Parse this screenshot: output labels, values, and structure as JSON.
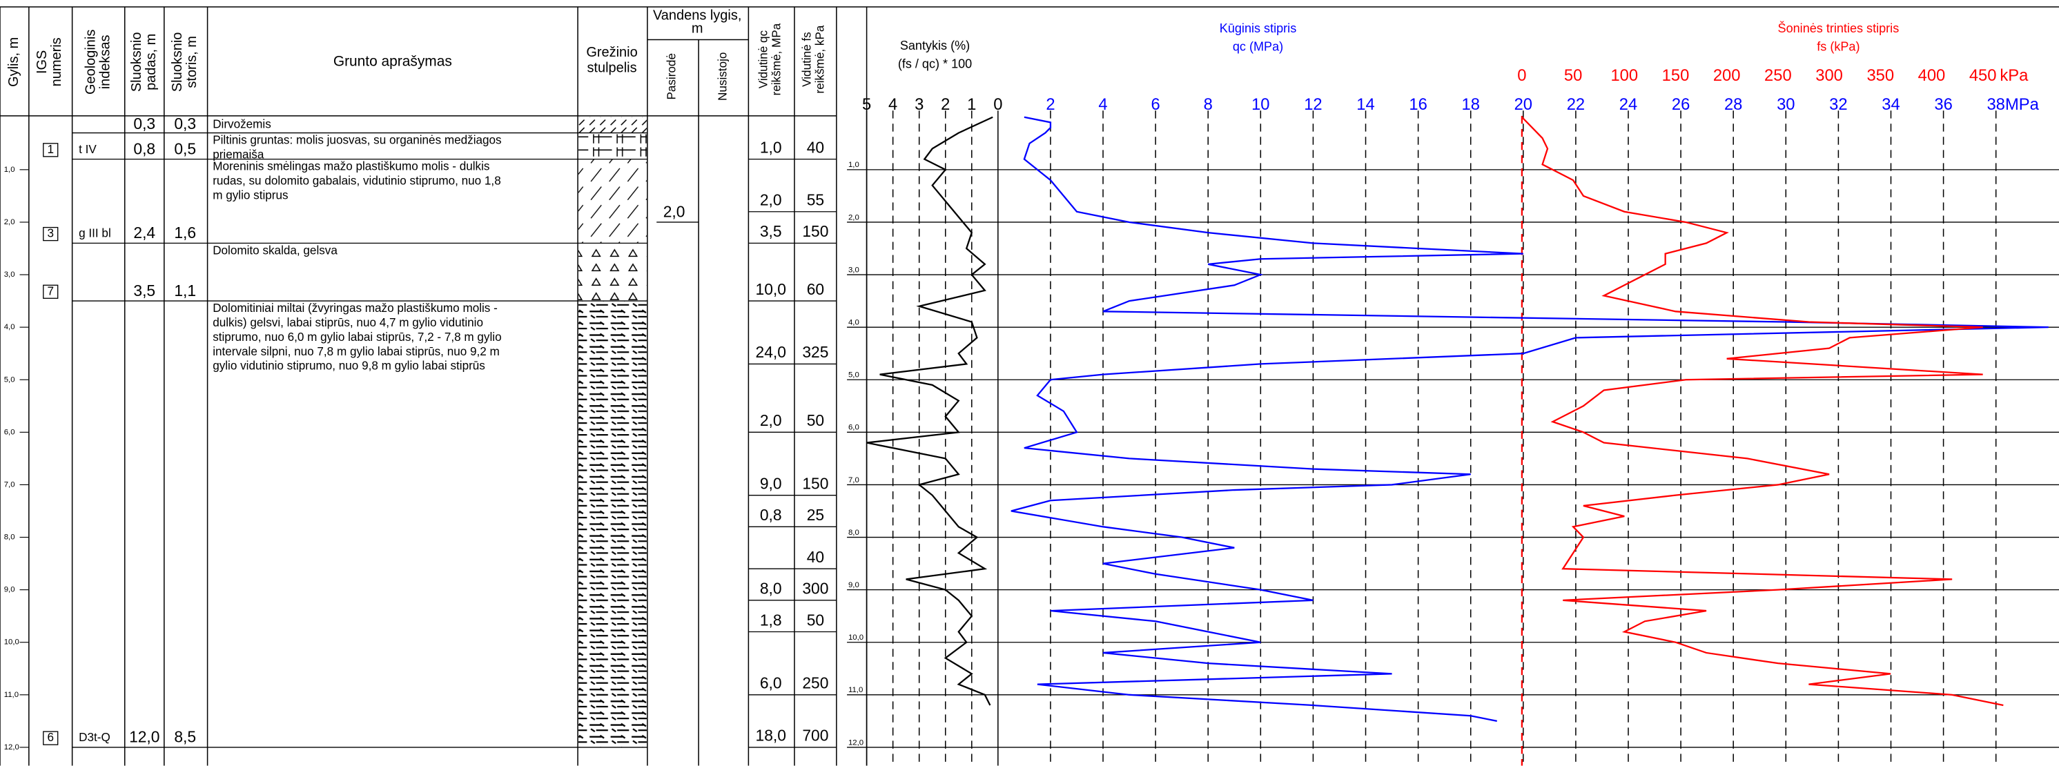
{
  "headers": {
    "gylis": [
      "Gylis, m"
    ],
    "igs": [
      "IGS",
      "numeris"
    ],
    "index": [
      "Geologinis",
      "indeksas"
    ],
    "padas": [
      "Sluoksnio",
      "padas, m"
    ],
    "storis": [
      "Sluoksnio",
      "storis, m"
    ],
    "aprasymas": "Grunto aprašymas",
    "stulpelis": [
      "Grežinio",
      "stulpelis"
    ],
    "vandens": [
      "Vandens lygis,",
      "m"
    ],
    "pasirode": "Pasirodė",
    "nusistojo": "Nusistojo",
    "vid_qc": [
      "Vidutinė qc",
      "reikšmė, MPa"
    ],
    "vid_fs": [
      "Vidutinė fs",
      "reikšmė, kPa"
    ]
  },
  "depth_lim": [
    0,
    12
  ],
  "depth_ticks": [
    {
      "value": 1,
      "label": "1,0"
    },
    {
      "value": 2,
      "label": "2,0"
    },
    {
      "value": 3,
      "label": "3,0"
    },
    {
      "value": 4,
      "label": "4,0"
    },
    {
      "value": 5,
      "label": "5,0"
    },
    {
      "value": 6,
      "label": "6,0"
    },
    {
      "value": 7,
      "label": "7,0"
    },
    {
      "value": 8,
      "label": "8,0"
    },
    {
      "value": 9,
      "label": "9,0"
    },
    {
      "value": 10,
      "label": "10,0"
    },
    {
      "value": 11,
      "label": "11,0"
    },
    {
      "value": 12,
      "label": "12,0"
    }
  ],
  "layers": [
    {
      "igs": null,
      "index": null,
      "padas": {
        "value": 0.3,
        "label": "0,3"
      },
      "storis": {
        "value": 0.3,
        "label": "0,3"
      },
      "description": [
        "Dirvožemis"
      ]
    },
    {
      "igs": "1",
      "index": "t IV",
      "padas": {
        "value": 0.8,
        "label": "0,8"
      },
      "storis": {
        "value": 0.5,
        "label": "0,5"
      },
      "description": [
        "Piltinis gruntas: molis juosvas, su organinės medžiagos",
        "priemaiša"
      ]
    },
    {
      "igs": "3",
      "index": "g III bl",
      "padas": {
        "value": 2.4,
        "label": "2,4"
      },
      "storis": {
        "value": 1.6,
        "label": "1,6"
      },
      "description": [
        "Moreninis smėlingas mažo plastiškumo molis - dulkis",
        "rudas, su dolomito gabalais, vidutinio stiprumo, nuo 1,8",
        "m gylio stiprus"
      ]
    },
    {
      "igs": "7",
      "index": null,
      "padas": {
        "value": 3.5,
        "label": "3,5"
      },
      "storis": {
        "value": 1.1,
        "label": "1,1"
      },
      "description": [
        "Dolomito skalda, gelsva"
      ]
    },
    {
      "igs": "6",
      "index": "D3t-Q",
      "padas": {
        "value": 12.0,
        "label": "12,0"
      },
      "storis": {
        "value": 8.5,
        "label": "8,5"
      },
      "description": [
        "Dolomitiniai miltai (žvyringas mažo plastiškumo molis -",
        "dulkis) gelsvi, labai stiprūs, nuo 4,7 m gylio vidutinio",
        "stiprumo, nuo 6,0 m gylio labai stiprūs, 7,2 - 7,8 m gylio",
        "intervale silpni, nuo 7,8 m gylio labai stiprūs, nuo 9,2 m",
        "gylio vidutinio stiprumo, nuo 9,8 m gylio labai stiprūs"
      ]
    }
  ],
  "water": {
    "pasirode": {
      "value": 2.0,
      "label": "2,0"
    }
  },
  "averages": [
    {
      "depth_to": 0.8,
      "qc": {
        "value": 1.0,
        "label": "1,0"
      },
      "fs": 40
    },
    {
      "depth_to": 1.8,
      "qc": {
        "value": 2.0,
        "label": "2,0"
      },
      "fs": 55
    },
    {
      "depth_to": 2.4,
      "qc": {
        "value": 3.5,
        "label": "3,5"
      },
      "fs": 150
    },
    {
      "depth_to": 3.5,
      "qc": {
        "value": 10.0,
        "label": "10,0"
      },
      "fs": 60
    },
    {
      "depth_to": 4.7,
      "qc": {
        "value": 24.0,
        "label": "24,0"
      },
      "fs": 325
    },
    {
      "depth_to": 6.0,
      "qc": {
        "value": 2.0,
        "label": "2,0"
      },
      "fs": 50
    },
    {
      "depth_to": 7.2,
      "qc": {
        "value": 9.0,
        "label": "9,0"
      },
      "fs": 150
    },
    {
      "depth_to": 7.8,
      "qc": {
        "value": 0.8,
        "label": "0,8"
      },
      "fs": 25
    },
    {
      "depth_to": 8.6,
      "qc": null,
      "fs": 40
    },
    {
      "depth_to": 9.2,
      "qc": {
        "value": 8.0,
        "label": "8,0"
      },
      "fs": 300
    },
    {
      "depth_to": 9.8,
      "qc": {
        "value": 1.8,
        "label": "1,8"
      },
      "fs": 50
    },
    {
      "depth_to": 11.0,
      "qc": {
        "value": 6.0,
        "label": "6,0"
      },
      "fs": 250
    },
    {
      "depth_to": 12.0,
      "qc": {
        "value": 18.0,
        "label": "18,0"
      },
      "fs": 700
    }
  ],
  "cpt": {
    "ratio_title": [
      "Santykis (%)",
      "(fs / qc) * 100"
    ],
    "qc_title": [
      "Kūginis stipris",
      "qc (MPa)"
    ],
    "fs_title": [
      "Šoninės trinties stipris",
      "fs (kPa)"
    ],
    "ratio_lim": [
      0,
      5
    ],
    "ratio_ticks": [
      5,
      4,
      3,
      2,
      1,
      0
    ],
    "qc_lim": [
      0,
      38
    ],
    "qc_ticks": [
      2,
      4,
      6,
      8,
      10,
      12,
      14,
      16,
      18,
      20,
      22,
      24,
      26,
      28,
      30,
      32,
      34,
      36,
      38
    ],
    "qc_unit": "MPa",
    "fs_lim": [
      0,
      450
    ],
    "fs_ticks": [
      0,
      50,
      100,
      150,
      200,
      250,
      300,
      350,
      400,
      450
    ],
    "fs_unit": "kPa",
    "ratio": {
      "color": "#000000",
      "depth": [
        0,
        0.3,
        0.6,
        0.8,
        1.0,
        1.3,
        1.6,
        1.9,
        2.2,
        2.5,
        2.8,
        3.0,
        3.3,
        3.6,
        3.9,
        4.2,
        4.5,
        4.7,
        4.9,
        5.1,
        5.4,
        5.7,
        6.0,
        6.2,
        6.5,
        6.8,
        7.0,
        7.2,
        7.5,
        7.8,
        8.0,
        8.3,
        8.6,
        8.8,
        9.0,
        9.2,
        9.5,
        9.8,
        10.0,
        10.3,
        10.6,
        10.8,
        11.0,
        11.2
      ],
      "values": [
        0.2,
        1.5,
        2.5,
        2.8,
        2.0,
        2.5,
        2.0,
        1.5,
        1.0,
        1.2,
        0.5,
        1.0,
        0.5,
        3.0,
        1.0,
        0.8,
        1.5,
        1.2,
        4.5,
        2.5,
        1.5,
        2.0,
        1.5,
        5.0,
        2.0,
        1.5,
        3.0,
        2.5,
        2.0,
        1.5,
        0.8,
        1.5,
        0.5,
        3.5,
        2.0,
        1.5,
        1.0,
        1.5,
        1.2,
        2.0,
        1.0,
        1.5,
        0.5,
        0.3
      ]
    },
    "qc": {
      "color": "#0000ff",
      "depth": [
        0,
        0.1,
        0.2,
        0.3,
        0.5,
        0.8,
        1.0,
        1.2,
        1.5,
        1.8,
        2.0,
        2.2,
        2.4,
        2.6,
        2.7,
        2.8,
        3.0,
        3.2,
        3.5,
        3.7,
        3.9,
        4.0,
        4.2,
        4.5,
        4.7,
        4.9,
        5.0,
        5.3,
        5.6,
        6.0,
        6.3,
        6.5,
        6.7,
        6.8,
        7.0,
        7.1,
        7.3,
        7.5,
        7.8,
        8.0,
        8.2,
        8.5,
        8.7,
        9.0,
        9.2,
        9.4,
        9.6,
        9.8,
        10.0,
        10.2,
        10.4,
        10.6,
        10.8,
        11.0,
        11.2,
        11.4,
        11.5
      ],
      "values": [
        1,
        2,
        2,
        1.8,
        1.2,
        1.0,
        1.5,
        2,
        2.5,
        3,
        5,
        8,
        12,
        20,
        10,
        8,
        10,
        9,
        5,
        4,
        30,
        40,
        22,
        20,
        10,
        4,
        2,
        1.5,
        2.5,
        3,
        1,
        5,
        12,
        18,
        15,
        9,
        2,
        0.5,
        4,
        7,
        9,
        4,
        6,
        10,
        12,
        2,
        6,
        8,
        10,
        4,
        8,
        15,
        1.5,
        5,
        12,
        18,
        19
      ]
    },
    "fs": {
      "color": "#ff0000",
      "depth": [
        0,
        0.2,
        0.4,
        0.6,
        0.9,
        1.2,
        1.5,
        1.8,
        2.0,
        2.2,
        2.4,
        2.6,
        2.8,
        3.0,
        3.2,
        3.4,
        3.7,
        3.9,
        4.0,
        4.2,
        4.4,
        4.6,
        4.9,
        5.0,
        5.2,
        5.5,
        5.8,
        6.0,
        6.2,
        6.5,
        6.8,
        7.0,
        7.2,
        7.4,
        7.6,
        7.8,
        8.0,
        8.3,
        8.6,
        8.8,
        9.0,
        9.2,
        9.4,
        9.6,
        9.8,
        10.0,
        10.2,
        10.4,
        10.6,
        10.8,
        11.0,
        11.2
      ],
      "values": [
        0,
        10,
        20,
        25,
        20,
        50,
        60,
        100,
        160,
        200,
        180,
        140,
        140,
        120,
        100,
        80,
        150,
        280,
        450,
        320,
        300,
        200,
        450,
        160,
        80,
        60,
        30,
        60,
        80,
        220,
        300,
        250,
        150,
        60,
        100,
        50,
        60,
        50,
        40,
        420,
        250,
        40,
        180,
        120,
        100,
        150,
        180,
        250,
        360,
        280,
        420,
        470
      ]
    }
  }
}
